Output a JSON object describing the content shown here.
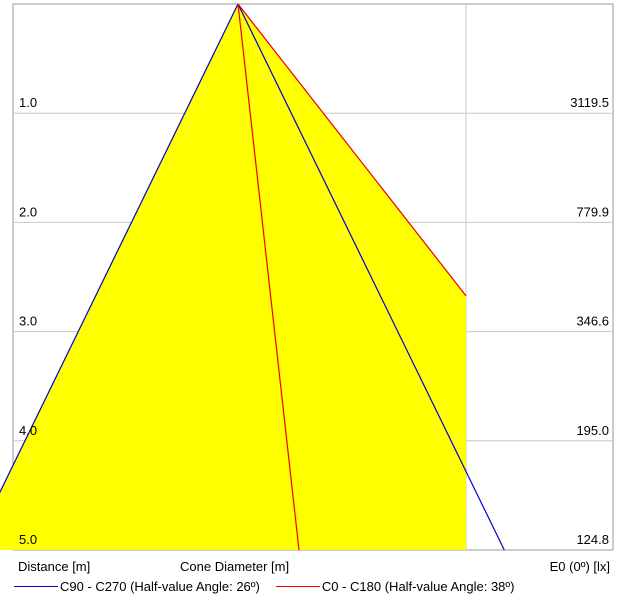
{
  "chart_data": {
    "type": "area",
    "xlabel": "Cone Diameter [m]",
    "ylabel": "Distance [m]",
    "right_label": "E0 (0º) [lx]",
    "distances": [
      1.0,
      2.0,
      3.0,
      4.0,
      5.0
    ],
    "distance_labels": [
      "1.0",
      "2.0",
      "3.0",
      "4.0",
      "5.0"
    ],
    "illuminance_labels": [
      "3119.5",
      "779.9",
      "346.6",
      "195.0",
      "124.8"
    ],
    "ylim": [
      0,
      5
    ],
    "grid": true,
    "fill_color": "#ffff00",
    "series": [
      {
        "name": "C90 - C270 (Half-value Angle: 26º)",
        "color": "#0000cc",
        "half_angle_deg": 26
      },
      {
        "name": "C0 - C180 (Half-value Angle: 38º)",
        "color": "#ee0000",
        "half_angle_deg": 38
      }
    ],
    "legend_position": "bottom"
  }
}
